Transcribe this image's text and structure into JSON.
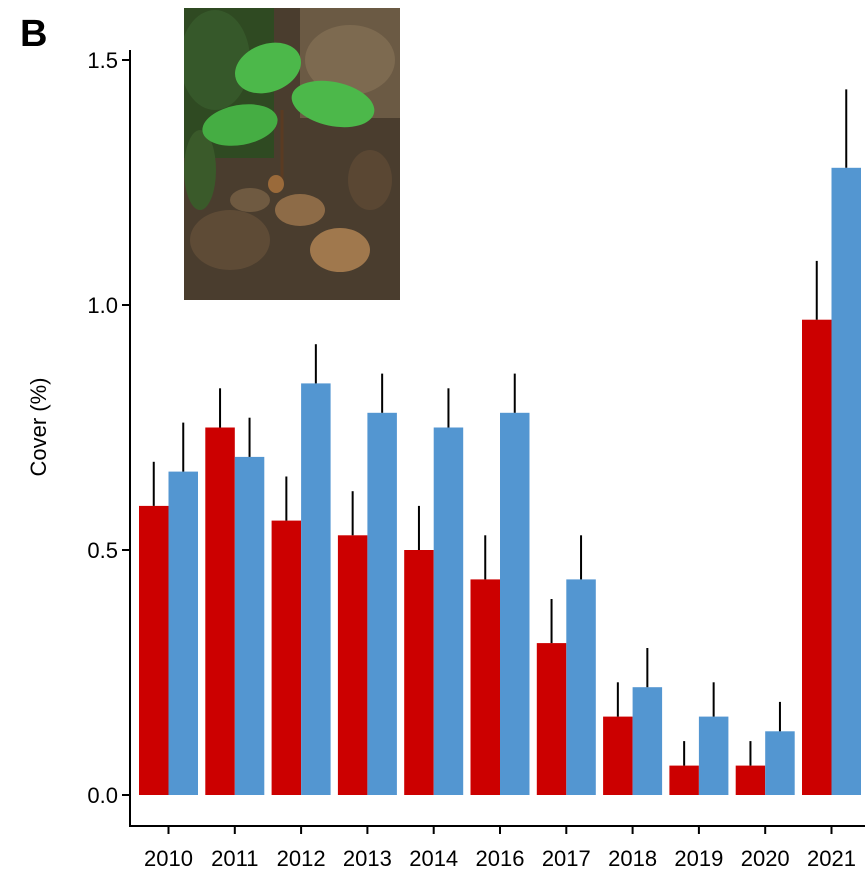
{
  "panel_label": "B",
  "colors": {
    "series_a": "#cc0000",
    "series_b": "#5396d1"
  },
  "photo": {
    "subject": "oak seedling on forest floor"
  },
  "chart_data": {
    "type": "bar",
    "ylabel": "Cover (%)",
    "xlabel": "",
    "ylim": [
      0,
      1.5
    ],
    "yticks": [
      "0.0",
      "0.5",
      "1.0",
      "1.5"
    ],
    "yticks_values": [
      0,
      0.5,
      1.0,
      1.5
    ],
    "categories": [
      "2010",
      "2011",
      "2012",
      "2013",
      "2014",
      "2016",
      "2017",
      "2018",
      "2019",
      "2020",
      "2021"
    ],
    "series": [
      {
        "values": [
          0.59,
          0.75,
          0.56,
          0.53,
          0.5,
          0.44,
          0.31,
          0.16,
          0.06,
          0.06,
          0.97
        ],
        "errors": [
          0.09,
          0.08,
          0.09,
          0.09,
          0.09,
          0.09,
          0.09,
          0.07,
          0.05,
          0.05,
          0.12
        ]
      },
      {
        "values": [
          0.66,
          0.69,
          0.84,
          0.78,
          0.75,
          0.78,
          0.44,
          0.22,
          0.16,
          0.13,
          1.28
        ],
        "errors": [
          0.1,
          0.08,
          0.08,
          0.08,
          0.08,
          0.08,
          0.09,
          0.08,
          0.07,
          0.06,
          0.16
        ]
      }
    ],
    "grid": false,
    "legend": "none"
  }
}
